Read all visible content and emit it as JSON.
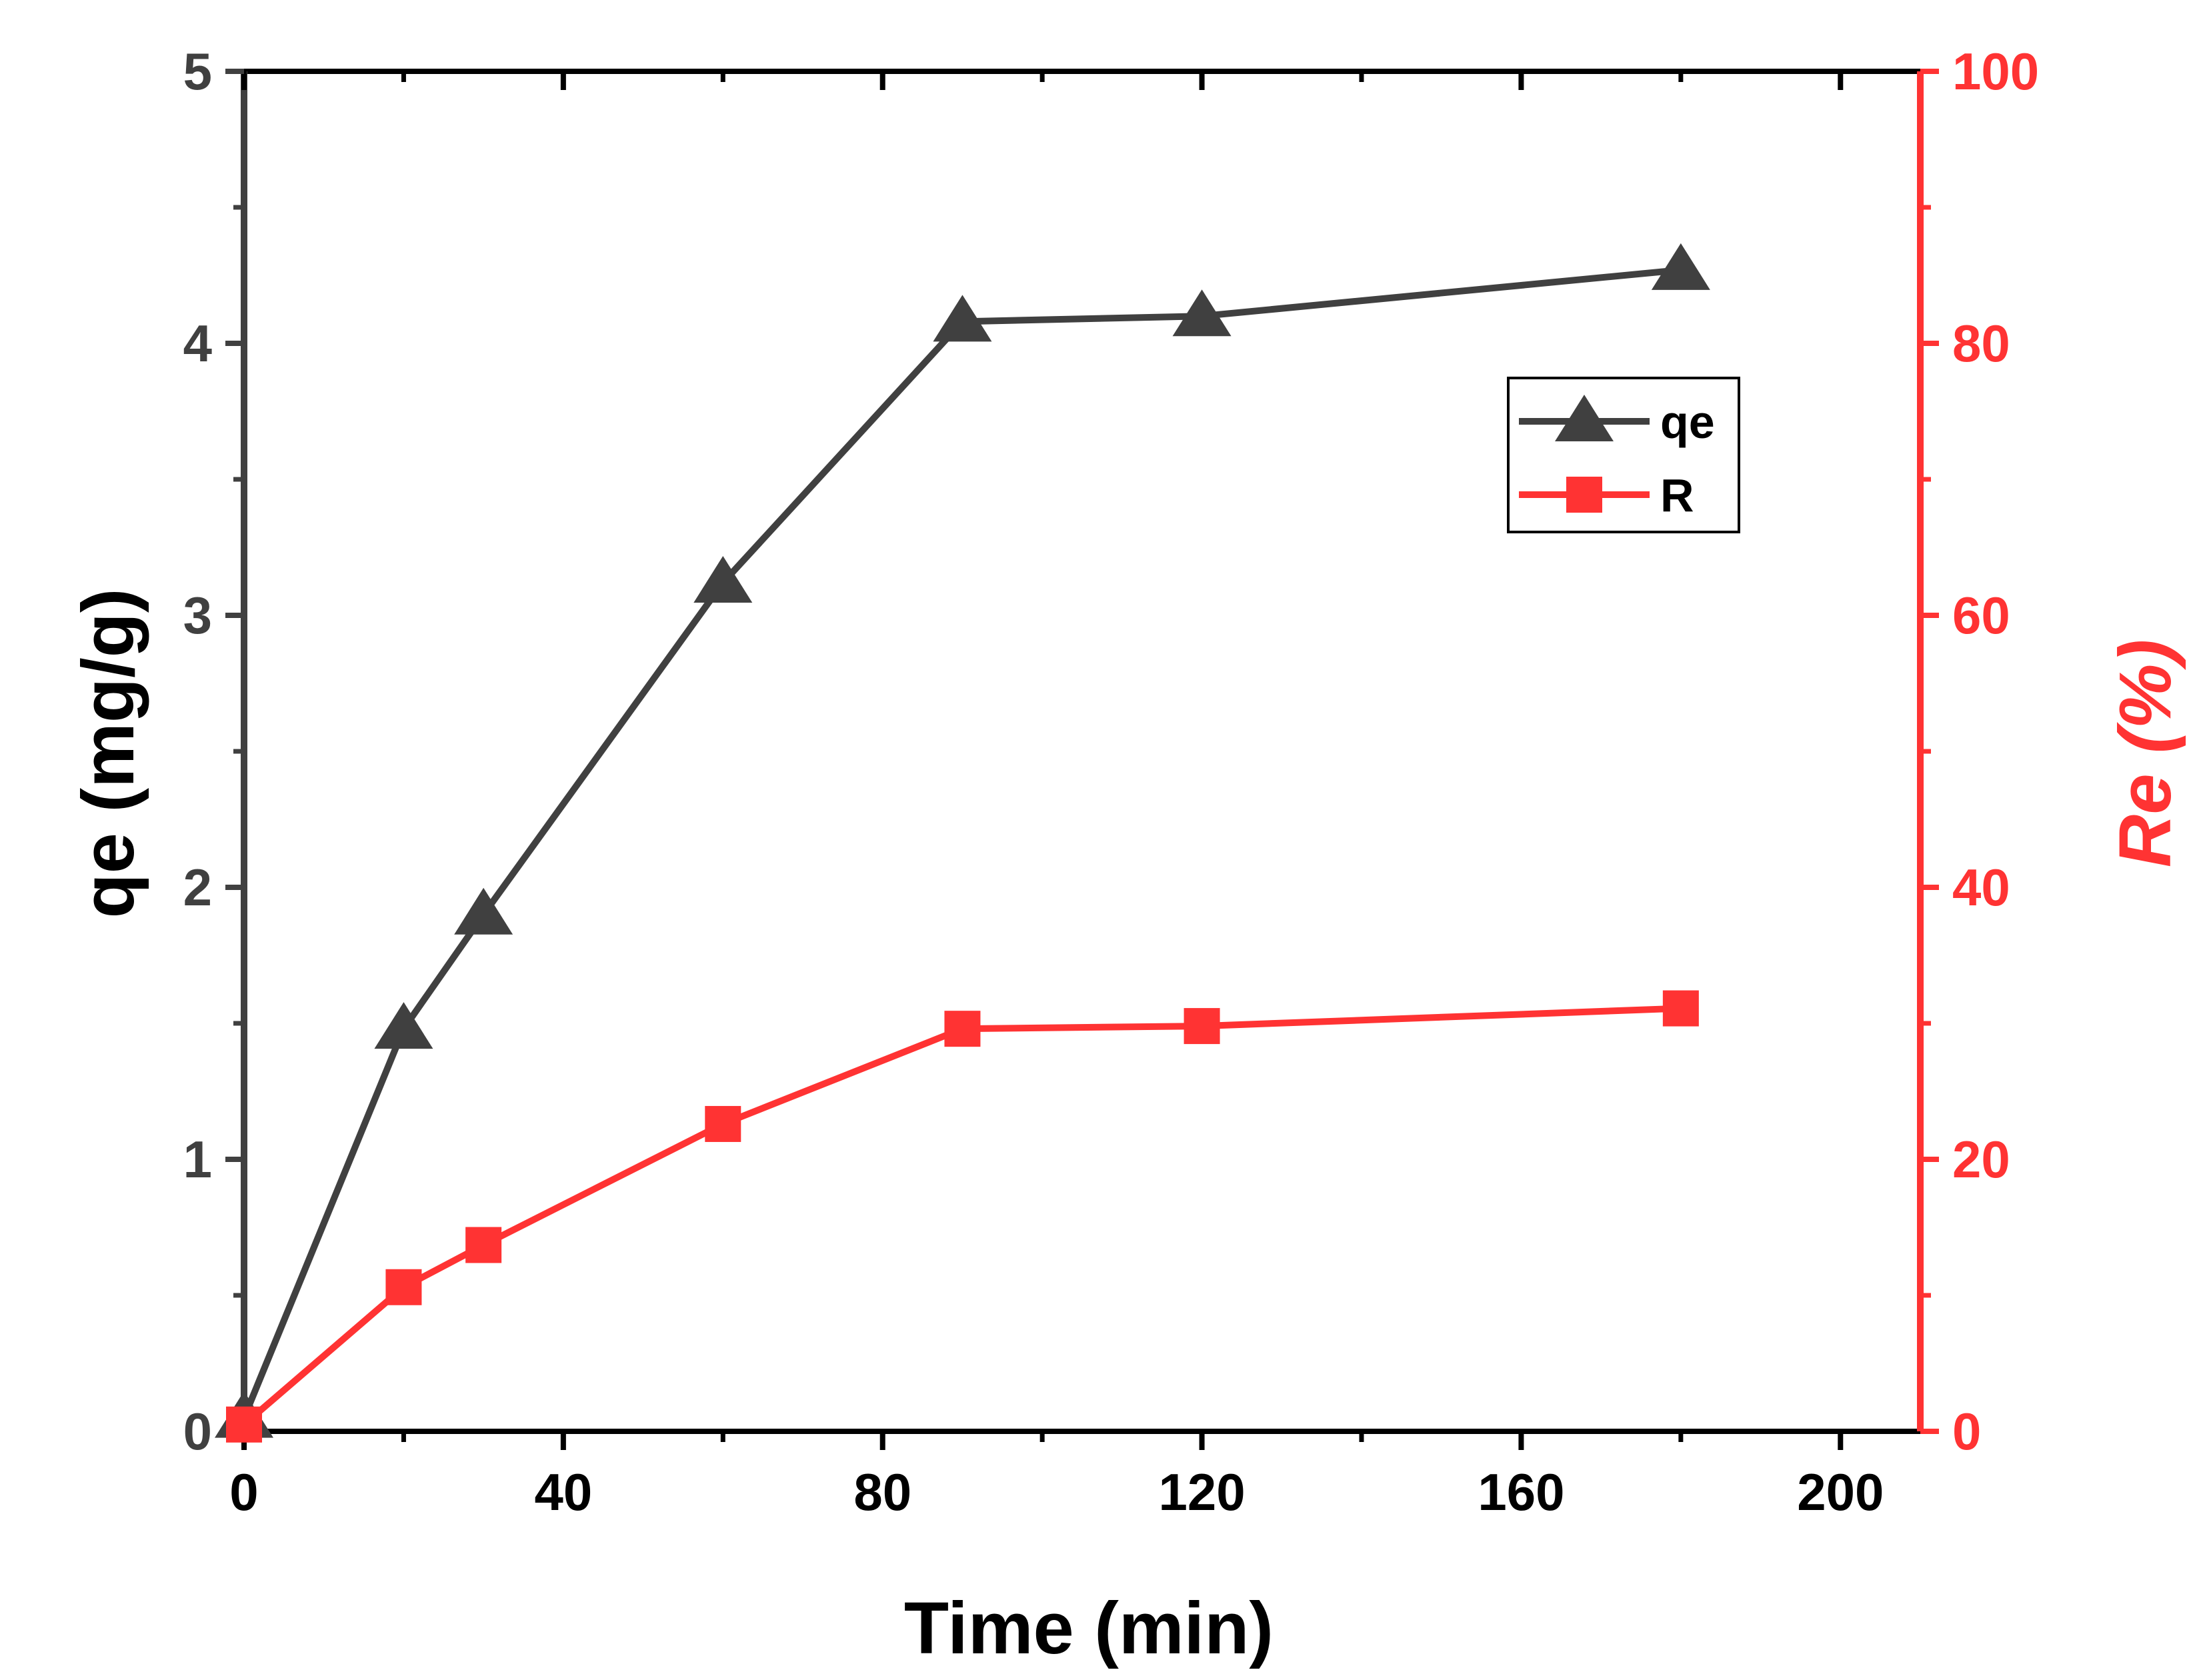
{
  "chart_data": {
    "type": "line",
    "title": "",
    "xlabel": "Time (min)",
    "ylabel_left": "qe (mg/g)",
    "ylabel_right": "Re (%)",
    "xlim": [
      0,
      210
    ],
    "ylim_left": [
      0,
      5
    ],
    "ylim_right": [
      0,
      100
    ],
    "xticks": [
      0,
      40,
      80,
      120,
      160,
      200
    ],
    "xtick_labels": [
      "0",
      "40",
      "80",
      "120",
      "160",
      "200"
    ],
    "yticks_left": [
      0,
      1,
      2,
      3,
      4,
      5
    ],
    "ytick_labels_left": [
      "0",
      "1",
      "2",
      "3",
      "4",
      "5"
    ],
    "yticks_right": [
      0,
      20,
      40,
      60,
      80,
      100
    ],
    "ytick_labels_right": [
      "0",
      "20",
      "40",
      "60",
      "80",
      "100"
    ],
    "grid": false,
    "legend_position": "upper-right",
    "series": [
      {
        "name": "qe",
        "axis": "left",
        "marker": "triangle",
        "color": "#404040",
        "x": [
          0,
          20,
          30,
          60,
          90,
          120,
          180
        ],
        "values": [
          0.05,
          1.48,
          1.9,
          3.12,
          4.08,
          4.1,
          4.27
        ]
      },
      {
        "name": "R",
        "axis": "right",
        "marker": "square",
        "color": "#ff3333",
        "x": [
          0,
          20,
          30,
          60,
          90,
          120,
          180
        ],
        "values": [
          0.5,
          10.6,
          13.7,
          22.6,
          29.6,
          29.8,
          31.1
        ]
      }
    ]
  },
  "colors": {
    "left_axis": "#404040",
    "right_axis": "#ff3333",
    "frame": "#000000",
    "title_text": "#000000"
  }
}
